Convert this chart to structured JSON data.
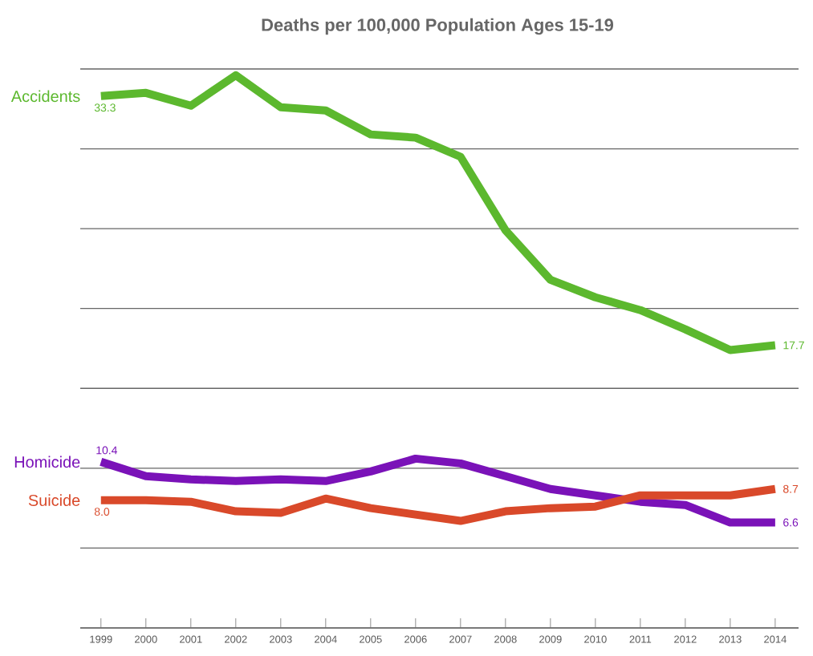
{
  "chart_data": {
    "type": "line",
    "title": "Deaths per 100,000 Population Ages 15-19",
    "categories": [
      "1999",
      "2000",
      "2001",
      "2002",
      "2003",
      "2004",
      "2005",
      "2006",
      "2007",
      "2008",
      "2009",
      "2010",
      "2011",
      "2012",
      "2013",
      "2014"
    ],
    "series": [
      {
        "name": "Accidents",
        "color": "#5cb82e",
        "values": [
          33.3,
          33.5,
          32.7,
          34.6,
          32.6,
          32.4,
          30.9,
          30.7,
          29.5,
          24.9,
          21.8,
          20.7,
          19.9,
          18.7,
          17.4,
          17.7
        ],
        "value_labels": [
          "33.3",
          null,
          null,
          null,
          null,
          null,
          null,
          null,
          null,
          null,
          null,
          null,
          null,
          null,
          null,
          "17.7"
        ]
      },
      {
        "name": "Homicide",
        "color": "#7a12b8",
        "values": [
          10.4,
          9.5,
          9.3,
          9.2,
          9.3,
          9.2,
          9.8,
          10.6,
          10.3,
          9.5,
          8.7,
          8.3,
          7.9,
          7.7,
          6.6,
          6.6
        ],
        "value_labels": [
          "10.4",
          null,
          null,
          null,
          null,
          null,
          null,
          null,
          null,
          null,
          null,
          null,
          null,
          null,
          null,
          "6.6"
        ]
      },
      {
        "name": "Suicide",
        "color": "#d9492a",
        "values": [
          8.0,
          8.0,
          7.9,
          7.3,
          7.2,
          8.1,
          7.5,
          7.1,
          6.7,
          7.3,
          7.5,
          7.6,
          8.3,
          8.3,
          8.3,
          8.7
        ],
        "value_labels": [
          "8.0",
          null,
          null,
          null,
          null,
          null,
          null,
          null,
          null,
          null,
          null,
          null,
          null,
          null,
          null,
          "8.7"
        ]
      }
    ],
    "ylim": [
      0,
      35
    ],
    "yticks": [
      {
        "value": 0,
        "label": null
      },
      {
        "value": 5,
        "label": null
      },
      {
        "value": 10,
        "label": null
      },
      {
        "value": 15,
        "label": null
      },
      {
        "value": 20,
        "label": null
      },
      {
        "value": 25,
        "label": null
      },
      {
        "value": 30,
        "label": null
      },
      {
        "value": 35,
        "label": null
      }
    ],
    "grid": "y",
    "tick_labels": "x",
    "legend": false,
    "marker": "none",
    "line_style": "solid"
  }
}
